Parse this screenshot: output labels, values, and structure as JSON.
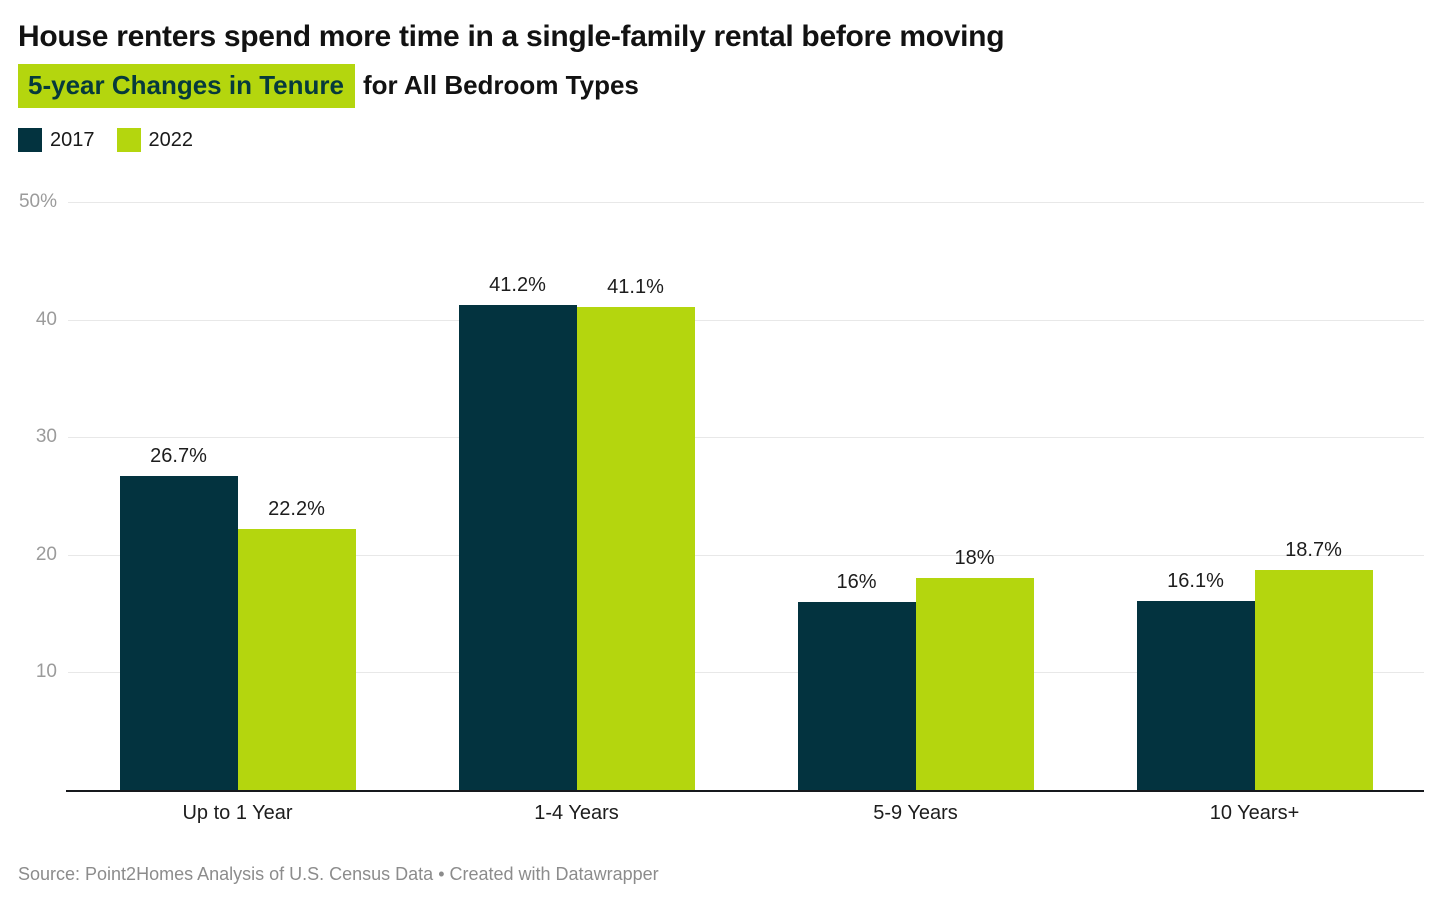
{
  "chart_data": {
    "type": "bar",
    "title": "House renters spend more time in a single-family rental before moving",
    "subtitle_highlight": "5-year Changes in Tenure",
    "subtitle_rest": "for All Bedroom Types",
    "categories": [
      "Up to 1 Year",
      "1-4 Years",
      "5-9 Years",
      "10 Years+"
    ],
    "series": [
      {
        "name": "2017",
        "color": "#03333f",
        "values": [
          26.7,
          41.2,
          16,
          16.1
        ],
        "labels": [
          "26.7%",
          "41.2%",
          "16%",
          "16.1%"
        ]
      },
      {
        "name": "2022",
        "color": "#b4d60e",
        "values": [
          22.2,
          41.1,
          18,
          18.7
        ],
        "labels": [
          "22.2%",
          "41.1%",
          "18%",
          "18.7%"
        ]
      }
    ],
    "ylim": [
      0,
      50
    ],
    "yticks": [
      10,
      20,
      30,
      40,
      50
    ],
    "ytick_labels": [
      "10",
      "20",
      "30",
      "40",
      "50%"
    ],
    "grid": true,
    "legend_position": "top-left",
    "source_note": "Source: Point2Homes Analysis of U.S. Census Data • Created with Datawrapper"
  },
  "colors": {
    "series_2017": "#03333f",
    "series_2022": "#b4d60e",
    "subtitle_highlight_bg": "#b4d60e",
    "subtitle_highlight_text": "#063a3c",
    "title_text": "#121212",
    "gridline": "#e8e8e8",
    "axis_tick_text": "#9b9b9b",
    "baseline": "#17191d",
    "label_text": "#1d1d1d",
    "source_text": "#8c8c8c"
  }
}
